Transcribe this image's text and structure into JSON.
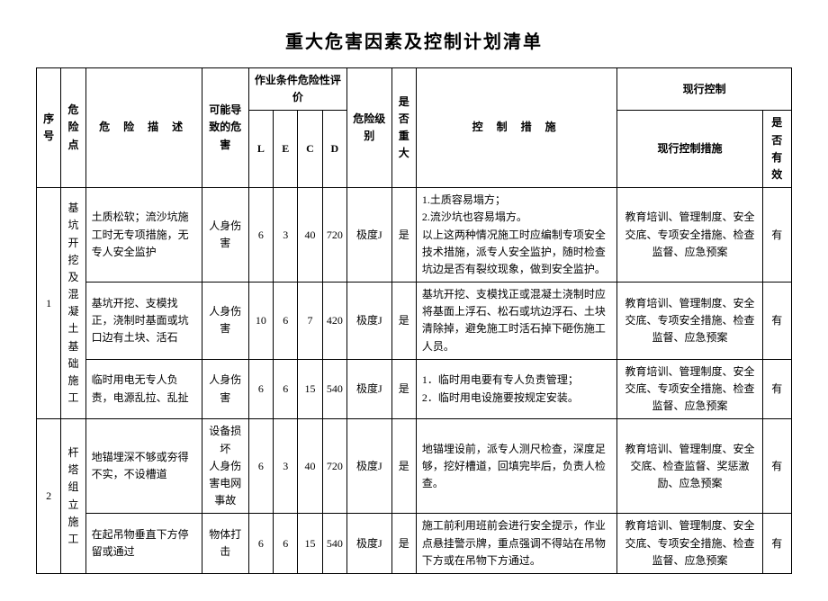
{
  "title": "重大危害因素及控制计划清单",
  "headers": {
    "seq": "序号",
    "point": "危险点",
    "desc": "危 险 描 述",
    "cause": "可能导致的危害",
    "eval_group": "作业条件危险性评价",
    "L": "L",
    "E": "E",
    "C": "C",
    "D": "D",
    "level": "危险级别",
    "major": "是否重大",
    "control": "控 制 措 施",
    "current_group": "现行控制",
    "current_measures": "现行控制措施",
    "effective": "是否有效"
  },
  "rows": [
    {
      "seq": "1",
      "point": "基坑开挖及混凝土基础施工",
      "desc": "土质松软；流沙坑施工时无专项措施，无专人安全监护",
      "cause": "人身伤害",
      "L": "6",
      "E": "3",
      "C": "40",
      "D": "720",
      "level": "极度J",
      "major": "是",
      "control": "1.土质容易塌方；\n2.流沙坑也容易塌方。\n以上这两种情况施工时应编制专项安全技术措施，派专人安全监护，随时检查坑边是否有裂纹现象，做到安全监护。",
      "current": "教育培训、管理制度、安全交底、专项安全措施、检查监督、应急预案",
      "effective": "有"
    },
    {
      "desc": "基坑开挖、支模找正，浇制时基面或坑口边有土块、活石",
      "cause": "人身伤害",
      "L": "10",
      "E": "6",
      "C": "7",
      "D": "420",
      "level": "极度J",
      "major": "是",
      "control": "基坑开挖、支模找正或混凝土浇制时应将基面上浮石、松石或坑边浮石、土块清除掉，避免施工时活石掉下砸伤施工人员。",
      "current": "教育培训、管理制度、安全交底、专项安全措施、检查监督、应急预案",
      "effective": "有"
    },
    {
      "desc": "临时用电无专人负责，电源乱拉、乱扯",
      "cause": "人身伤害",
      "L": "6",
      "E": "6",
      "C": "15",
      "D": "540",
      "level": "极度J",
      "major": "是",
      "control": "1．临时用电要有专人负责管理；\n2．临时用电设施要按规定安装。",
      "current": "教育培训、管理制度、安全交底、专项安全措施、检查监督、应急预案",
      "effective": "有"
    },
    {
      "seq": "2",
      "point": "杆塔组立施工",
      "desc": "地锚埋深不够或夯得不实，不设槽道",
      "cause": "设备损坏\n人身伤害电网事故",
      "L": "6",
      "E": "3",
      "C": "40",
      "D": "720",
      "level": "极度J",
      "major": "是",
      "control": "地锚埋设前，派专人测尺检查，深度足够，挖好槽道，回填完毕后，负责人检查。",
      "current": "教育培训、管理制度、安全交底、检查监督、奖惩激励、应急预案",
      "effective": "有"
    },
    {
      "desc": "在起吊物垂直下方停留或通过",
      "cause": "物体打击",
      "L": "6",
      "E": "6",
      "C": "15",
      "D": "540",
      "level": "极度J",
      "major": "是",
      "control": "施工前利用班前会进行安全提示，作业点悬挂警示牌，重点强调不得站在吊物下方或在吊物下方通过。",
      "current": "教育培训、管理制度、安全交底、专项安全措施、检查监督、应急预案",
      "effective": "有"
    }
  ]
}
